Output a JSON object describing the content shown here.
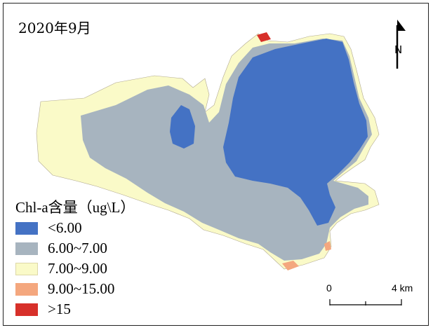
{
  "map": {
    "title": "2020年9月",
    "colors": {
      "water_low": "#4472c4",
      "water_mid": "#a7b4bf",
      "water_high": "#fafac8",
      "water_higher": "#f4a77e",
      "water_max": "#d7302a"
    }
  },
  "legend": {
    "title": "Chl-a含量（ug\\L）",
    "items": [
      {
        "label": "<6.00",
        "color": "#4472c4"
      },
      {
        "label": "6.00~7.00",
        "color": "#a7b4bf"
      },
      {
        "label": "7.00~9.00",
        "color": "#fafac8"
      },
      {
        "label": "9.00~15.00",
        "color": "#f4a77e"
      },
      {
        "label": ">15",
        "color": "#d7302a"
      }
    ]
  },
  "north_arrow": {
    "label": "N",
    "icon": "north-arrow-icon"
  },
  "scale_bar": {
    "start_label": "0",
    "end_label": "4 km"
  }
}
